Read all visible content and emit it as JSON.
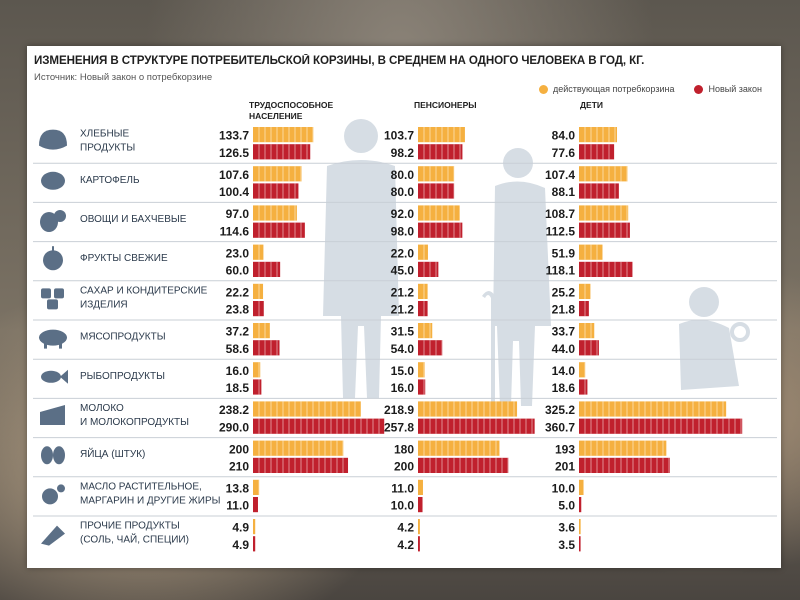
{
  "colors": {
    "current": "#f5b040",
    "new_law": "#c0202d",
    "icon": "#5b6f86",
    "silhouette": "#d6dde4",
    "text": "#1f1f1f"
  },
  "title": "ИЗМЕНЕНИЯ В СТРУКТУРЕ ПОТРЕБИТЕЛЬСКОЙ КОРЗИНЫ, В СРЕДНЕМ НА ОДНОГО ЧЕЛОВЕКА В ГОД, КГ.",
  "source": "Источник: Новый закон о потребкорзине",
  "chart_data": {
    "type": "bar",
    "title": "ИЗМЕНЕНИЯ В СТРУКТУРЕ ПОТРЕБИТЕЛЬСКОЙ КОРЗИНЫ, В СРЕДНЕМ НА ОДНОГО ЧЕЛОВЕКА В ГОД, КГ.",
    "legend": [
      "действующая потребкорзина",
      "Новый закон"
    ],
    "legend_position": "top-right",
    "categories": [
      {
        "label": [
          "ХЛЕБНЫЕ",
          "ПРОДУКТЫ"
        ],
        "icon": "bread-icon"
      },
      {
        "label": [
          "КАРТОФЕЛЬ"
        ],
        "icon": "potato-icon"
      },
      {
        "label": [
          "ОВОЩИ И БАХЧЕВЫЕ"
        ],
        "icon": "vegetables-icon"
      },
      {
        "label": [
          "ФРУКТЫ СВЕЖИЕ"
        ],
        "icon": "apple-icon"
      },
      {
        "label": [
          "САХАР И КОНДИТЕРСКИЕ",
          "ИЗДЕЛИЯ"
        ],
        "icon": "sugar-icon"
      },
      {
        "label": [
          "МЯСОПРОДУКТЫ"
        ],
        "icon": "pig-icon"
      },
      {
        "label": [
          "РЫБОПРОДУКТЫ"
        ],
        "icon": "fish-icon"
      },
      {
        "label": [
          "МОЛОКО",
          "И МОЛОКОПРОДУКТЫ"
        ],
        "icon": "cheese-icon"
      },
      {
        "label": [
          "ЯЙЦА (ШТУК)"
        ],
        "icon": "eggs-icon"
      },
      {
        "label": [
          "МАСЛО РАСТИТЕЛЬНОЕ,",
          "МАРГАРИН И ДРУГИЕ ЖИРЫ"
        ],
        "icon": "oil-icon"
      },
      {
        "label": [
          "ПРОЧИЕ ПРОДУКТЫ",
          "(СОЛЬ, ЧАЙ, СПЕЦИИ)"
        ],
        "icon": "salt-icon"
      }
    ],
    "groups": [
      {
        "name": [
          "ТРУДОСПОСОБНОЕ",
          "НАСЕЛЕНИЕ"
        ],
        "current": [
          "133.7",
          "107.6",
          "97.0",
          "23.0",
          "22.2",
          "37.2",
          "16.0",
          "238.2",
          "200",
          "13.8",
          "4.9"
        ],
        "new_law": [
          "126.5",
          "100.4",
          "114.6",
          "60.0",
          "23.8",
          "58.6",
          "18.5",
          "290.0",
          "210",
          "11.0",
          "4.9"
        ]
      },
      {
        "name": [
          "ПЕНСИОНЕРЫ"
        ],
        "current": [
          "103.7",
          "80.0",
          "92.0",
          "22.0",
          "21.2",
          "31.5",
          "15.0",
          "218.9",
          "180",
          "11.0",
          "4.2"
        ],
        "new_law": [
          "98.2",
          "80.0",
          "98.0",
          "45.0",
          "21.2",
          "54.0",
          "16.0",
          "257.8",
          "200",
          "10.0",
          "4.2"
        ]
      },
      {
        "name": [
          "ДЕТИ"
        ],
        "current": [
          "84.0",
          "107.4",
          "108.7",
          "51.9",
          "25.2",
          "33.7",
          "14.0",
          "325.2",
          "193",
          "10.0",
          "3.6"
        ],
        "new_law": [
          "77.6",
          "88.1",
          "112.5",
          "118.1",
          "21.8",
          "44.0",
          "18.6",
          "360.7",
          "201",
          "5.0",
          "3.5"
        ]
      }
    ],
    "xlabel": "",
    "ylabel": "",
    "grid": false
  }
}
